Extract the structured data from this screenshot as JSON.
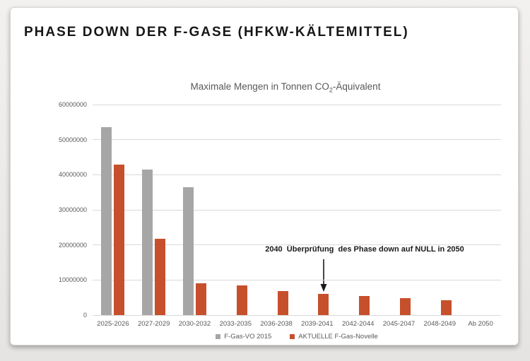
{
  "page": {
    "title": "PHASE DOWN DER F-GASE (HFKW-KÄLTEMITTEL)"
  },
  "chart_data": {
    "type": "bar",
    "title": "Maximale Mengen in Tonnen CO2-Äquivalent",
    "title_parts": {
      "pre": "Maximale Mengen in Tonnen CO",
      "sub": "2",
      "post": "-Äquivalent"
    },
    "categories": [
      "2025-2026",
      "2027-2029",
      "2030-2032",
      "2033-2035",
      "2036-2038",
      "2039-2041",
      "2042-2044",
      "2045-2047",
      "2048-2049",
      "Ab 2050"
    ],
    "series": [
      {
        "name": "F-Gas-VO 2015",
        "color": "#a6a6a6",
        "values": [
          53500000,
          41500000,
          36500000,
          0,
          0,
          0,
          0,
          0,
          0,
          0
        ]
      },
      {
        "name": "AKTUELLE F-Gas-Novelle",
        "color": "#c6502c",
        "values": [
          42900000,
          21700000,
          9100000,
          8400000,
          6800000,
          6100000,
          5500000,
          4800000,
          4200000,
          0
        ]
      }
    ],
    "xlabel": "",
    "ylabel": "",
    "ylim": [
      0,
      60000000
    ],
    "ytick_labels": [
      "0",
      "10000000",
      "20000000",
      "30000000",
      "40000000",
      "50000000",
      "60000000"
    ],
    "grid": true,
    "legend_position": "bottom",
    "annotation": {
      "text": "2040  Überprüfung  des Phase down auf NULL in 2050",
      "target_category": "2039-2041"
    },
    "colors": {
      "gridline": "#d9d9d9",
      "axis_text": "#595959",
      "chart_title_text": "#595959",
      "annotation_text": "#1a1a1a"
    }
  }
}
